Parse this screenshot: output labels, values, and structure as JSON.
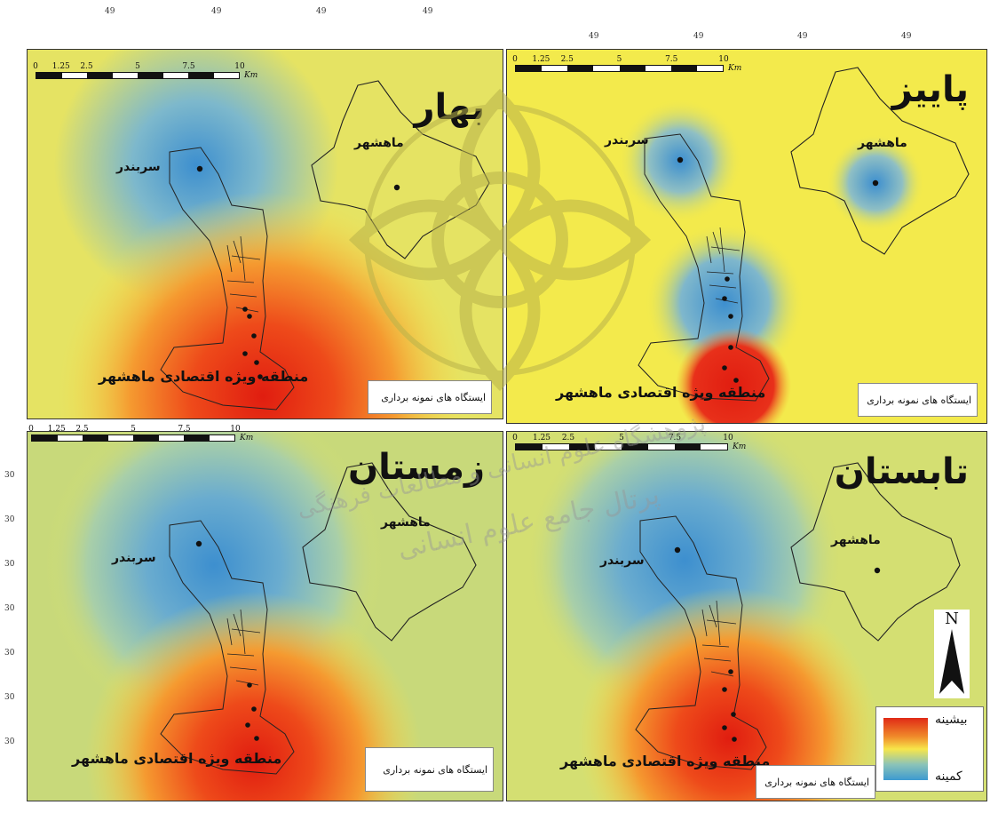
{
  "figure": {
    "panels": [
      {
        "id": "spring",
        "season": "بهار",
        "label_mahshahr": "ماهشهر",
        "label_sarbandar": "سربندر",
        "label_zone": "منطقه ویژه اقتصادی ماهشهر",
        "legend": "ایستگاه های نمونه برداری"
      },
      {
        "id": "autumn",
        "season": "پاییز",
        "label_mahshahr": "ماهشهر",
        "label_sarbandar": "سربندر",
        "label_zone": "منطقه ویژه اقتصادی ماهشهر",
        "legend": "ایستگاه های نمونه برداری"
      },
      {
        "id": "winter",
        "season": "زمستان",
        "label_mahshahr": "ماهشهر",
        "label_sarbandar": "سربندر",
        "label_zone": "منطقه ویژه اقتصادی ماهشهر",
        "legend": "ایستگاه های نمونه برداری"
      },
      {
        "id": "summer",
        "season": "تابستان",
        "label_mahshahr": "ماهشهر",
        "label_sarbandar": "سربندر",
        "label_zone": "منطقه ویژه اقتصادی ماهشهر",
        "legend": "ایستگاه های نمونه برداری"
      }
    ],
    "scale_bar": {
      "ticks": [
        "0",
        "1.25",
        "2.5",
        "5",
        "7.5",
        "10"
      ],
      "unit": "Km"
    },
    "longitude_label": "49",
    "latitude_label": "30",
    "north_arrow": "N",
    "color_legend": {
      "high": "بیشینه",
      "low": "کمینه",
      "colors": {
        "high": "#e02a16",
        "mid": "#f7e64a",
        "low": "#3d9ad0"
      }
    },
    "watermark": {
      "line1": "پرتال جامع علوم انسانی",
      "line2": "پژوهشگاه علوم انسانی و مطالعات فرهنگی"
    }
  }
}
